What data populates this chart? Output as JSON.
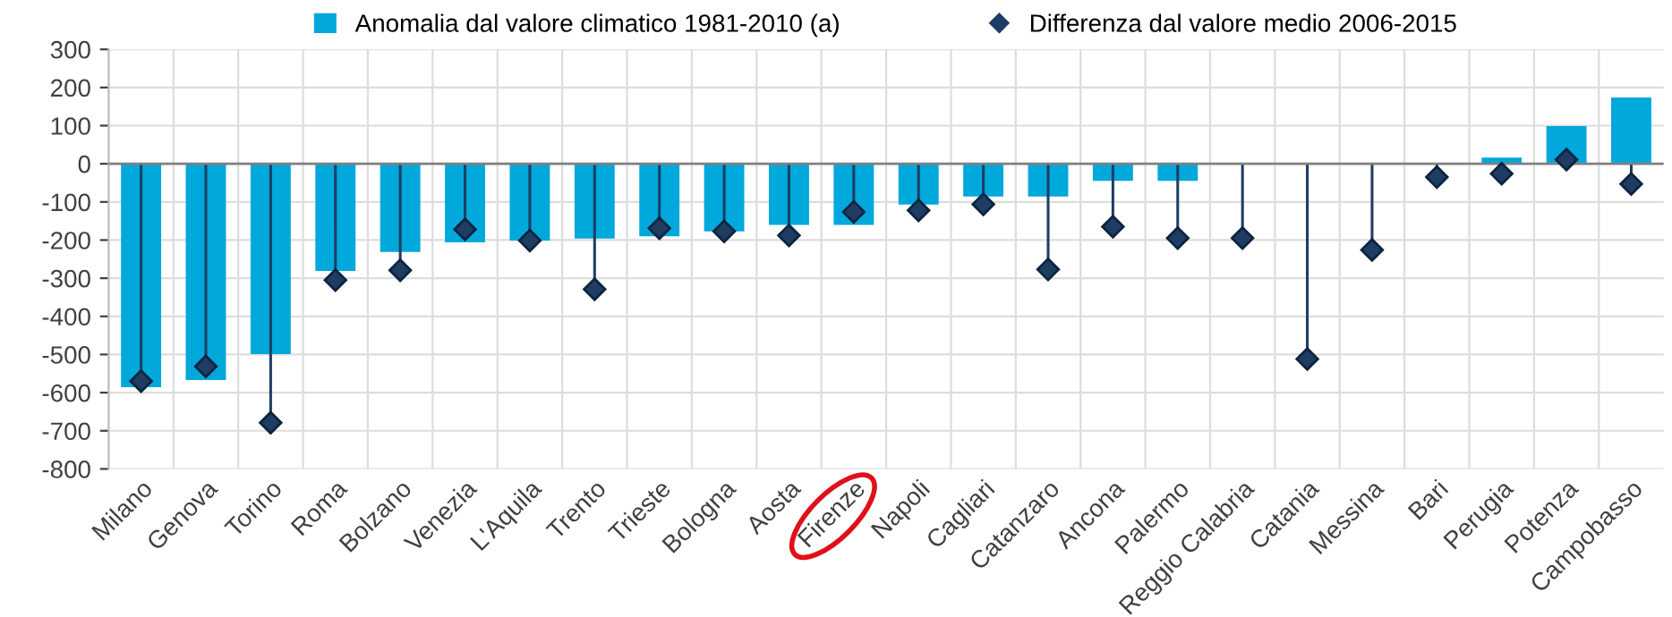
{
  "chart_data": {
    "type": "bar",
    "categories": [
      "Milano",
      "Genova",
      "Torino",
      "Roma",
      "Bolzano",
      "Venezia",
      "L'Aquila",
      "Trento",
      "Trieste",
      "Bologna",
      "Aosta",
      "Firenze",
      "Napoli",
      "Cagliari",
      "Catanzaro",
      "Ancona",
      "Palermo",
      "Reggio Calabria",
      "Catania",
      "Messina",
      "Bari",
      "Perugia",
      "Potenza",
      "Campobasso"
    ],
    "series": [
      {
        "name": "Anomalia dal valore climatico 1981-2010 (a)",
        "type": "bar",
        "color": "#00a8dc",
        "values": [
          -586,
          -567,
          -499,
          -281,
          -231,
          -206,
          -201,
          -196,
          -190,
          -177,
          -160,
          -160,
          -107,
          -86,
          -86,
          -45,
          -45,
          null,
          null,
          null,
          3,
          16,
          99,
          174
        ]
      },
      {
        "name": "Differenza dal valore medio 2006-2015",
        "type": "lollipop",
        "color": "#1f3d63",
        "values": [
          -570,
          -531,
          -679,
          -305,
          -279,
          -172,
          -201,
          -329,
          -169,
          -177,
          -188,
          -126,
          -122,
          -106,
          -277,
          -165,
          -195,
          -195,
          -512,
          -226,
          -35,
          -26,
          11,
          -53
        ]
      }
    ],
    "ylim": [
      -800,
      300
    ],
    "yticks": [
      -800,
      -700,
      -600,
      -500,
      -400,
      -300,
      -200,
      -100,
      0,
      100,
      200,
      300
    ],
    "grid": true,
    "legend": "top",
    "marker": "diamond"
  }
}
